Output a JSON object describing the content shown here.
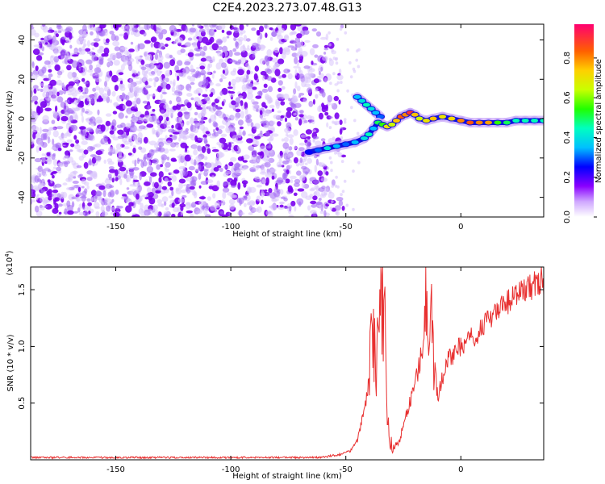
{
  "figure_title": "C2E4.2023.273.07.48.G13",
  "chart_data": [
    {
      "type": "heatmap",
      "xlabel": "Height of straight line (km)",
      "ylabel": "Frequency (Hz)",
      "xlim": [
        -187,
        36
      ],
      "ylim": [
        -50,
        48
      ],
      "xticks": [
        -150,
        -100,
        -50,
        0
      ],
      "yticks": [
        -40,
        -20,
        0,
        20,
        40
      ],
      "colorbar": {
        "label": "Normalized spectral amplitude",
        "range": [
          0,
          0.97
        ],
        "ticks": [
          0.0,
          0.2,
          0.4,
          0.6,
          0.8
        ],
        "tick_labels": [
          "0.0",
          "0.2",
          "0.4",
          "0.6",
          "0.8"
        ]
      },
      "noise_region_x": [
        -187,
        -58
      ],
      "signal_trace": {
        "x": [
          -66,
          -62,
          -58,
          -54,
          -50,
          -46,
          -42,
          -40,
          -38,
          -36,
          -34,
          -32,
          -30,
          -28,
          -26,
          -24,
          -22,
          -20,
          -18,
          -15,
          -12,
          -8,
          -4,
          0,
          4,
          8,
          12,
          16,
          20,
          24,
          28,
          32,
          36
        ],
        "y": [
          -17,
          -16,
          -15,
          -14,
          -13,
          -12,
          -10,
          -8,
          -5,
          -2,
          -3,
          -4,
          -3,
          -1,
          1,
          2,
          3,
          2,
          0,
          -1,
          0,
          1,
          0,
          -1,
          -2,
          -2,
          -2,
          -2,
          -2,
          -1,
          -1,
          -1,
          -1
        ],
        "amplitude": [
          0.25,
          0.3,
          0.4,
          0.35,
          0.3,
          0.35,
          0.4,
          0.45,
          0.35,
          0.5,
          0.55,
          0.7,
          0.65,
          0.75,
          0.85,
          0.8,
          0.9,
          0.75,
          0.65,
          0.7,
          0.75,
          0.7,
          0.72,
          0.8,
          0.85,
          0.8,
          0.78,
          0.55,
          0.5,
          0.45,
          0.45,
          0.45,
          0.45
        ]
      },
      "branch_trace": {
        "x": [
          -45,
          -43,
          -41,
          -39,
          -37,
          -35
        ],
        "y": [
          11,
          9,
          7,
          5,
          3,
          1
        ],
        "amplitude": [
          0.35,
          0.4,
          0.45,
          0.4,
          0.35,
          0.3
        ]
      }
    },
    {
      "type": "line",
      "xlabel": "Height of straight line (km)",
      "ylabel": "SNR (10 * v/v)",
      "y_multiplier_label": "(x10",
      "y_multiplier_exponent": "4",
      "y_multiplier_close": ")",
      "xlim": [
        -187,
        36
      ],
      "ylim": [
        0,
        1.7
      ],
      "xticks": [
        -150,
        -100,
        -50,
        0
      ],
      "yticks": [
        0.5,
        1.0,
        1.5
      ],
      "ytick_labels": [
        "0.5",
        "1.0",
        "1.5"
      ],
      "series": [
        {
          "color": "#e83030",
          "x": [
            -187,
            -150,
            -100,
            -62,
            -57,
            -52,
            -48,
            -45,
            -43,
            -41,
            -39,
            -38,
            -37,
            -36,
            -35,
            -34,
            -33,
            -32,
            -31,
            -30,
            -29,
            -27,
            -25,
            -23,
            -20,
            -18,
            -16,
            -15,
            -14,
            -13,
            -12,
            -10,
            -8,
            -6,
            -4,
            -2,
            0,
            2,
            4,
            6,
            8,
            10,
            12,
            14,
            16,
            18,
            20,
            22,
            24,
            26,
            28,
            30,
            32,
            34,
            36
          ],
          "y": [
            0.02,
            0.02,
            0.02,
            0.02,
            0.03,
            0.05,
            0.08,
            0.18,
            0.35,
            0.55,
            0.9,
            1.3,
            0.7,
            1.5,
            1.1,
            1.65,
            1.2,
            0.5,
            0.12,
            0.06,
            0.12,
            0.15,
            0.3,
            0.45,
            0.65,
            0.85,
            1.0,
            1.4,
            0.75,
            1.55,
            0.9,
            0.55,
            0.72,
            0.85,
            0.95,
            0.9,
            1.05,
            0.98,
            1.1,
            1.05,
            1.15,
            1.2,
            1.22,
            1.28,
            1.3,
            1.35,
            1.38,
            1.42,
            1.45,
            1.48,
            1.5,
            1.52,
            1.55,
            1.57,
            1.58
          ]
        }
      ]
    }
  ]
}
